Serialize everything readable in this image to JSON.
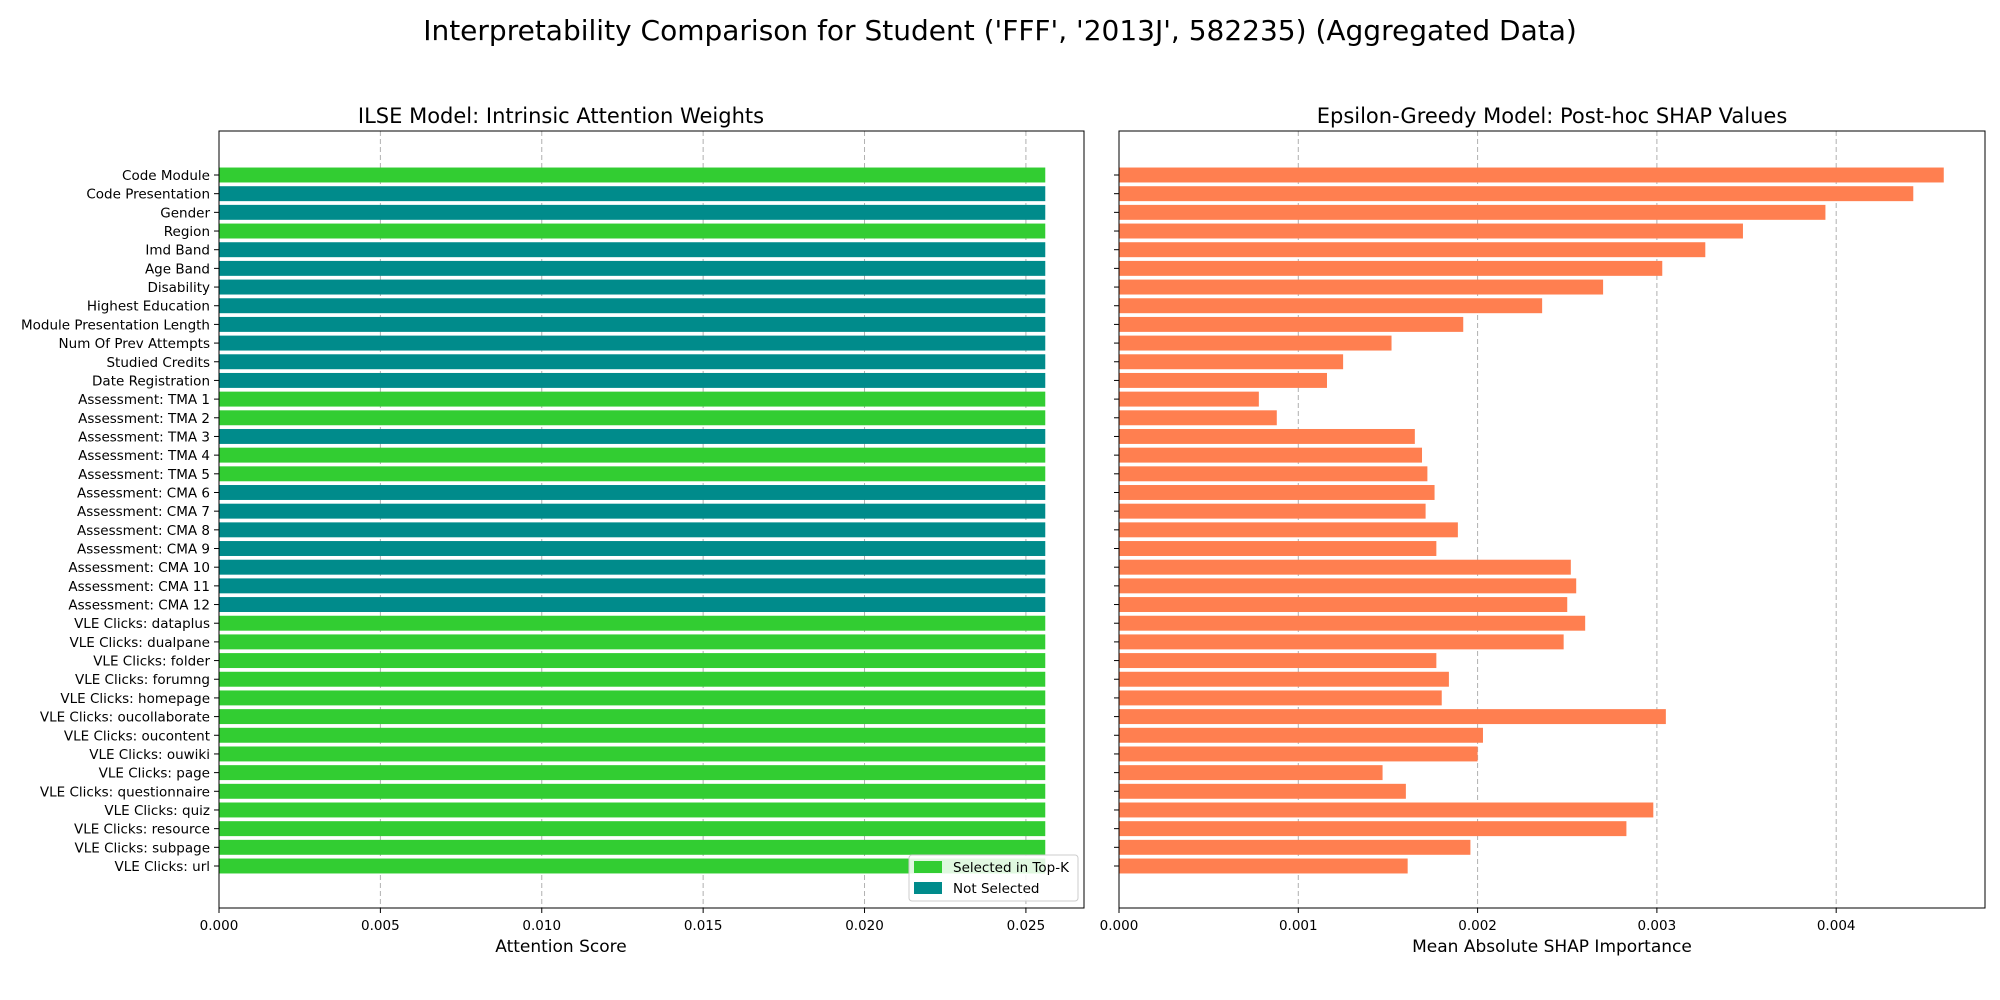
{
  "figure": {
    "suptitle": "Interpretability Comparison for Student ('FFF', '2013J', 582235) (Aggregated Data)"
  },
  "colors": {
    "selected": "#32cd32",
    "not_selected": "#008b8b",
    "shap": "#ff7f50",
    "grid": "#b0b0b0"
  },
  "chart_data": [
    {
      "type": "bar",
      "orientation": "horizontal",
      "title": "ILSE Model: Intrinsic Attention Weights",
      "xlabel": "Attention Score",
      "ylabel": "",
      "xlim": [
        0,
        0.0268
      ],
      "xticks": [
        "0.000",
        "0.005",
        "0.010",
        "0.015",
        "0.020",
        "0.025"
      ],
      "xtick_values": [
        0,
        0.005,
        0.01,
        0.015,
        0.02,
        0.025
      ],
      "grid": "vertical-dashed",
      "legend_placement": "lower-right",
      "legend": [
        {
          "label": "Selected in Top-K",
          "color": "#32cd32"
        },
        {
          "label": "Not Selected",
          "color": "#008b8b"
        }
      ],
      "categories": [
        "Code Module",
        "Code Presentation",
        "Gender",
        "Region",
        "Imd Band",
        "Age Band",
        "Disability",
        "Highest Education",
        "Module Presentation Length",
        "Num Of Prev Attempts",
        "Studied Credits",
        "Date Registration",
        "Assessment: TMA 1",
        "Assessment: TMA 2",
        "Assessment: TMA 3",
        "Assessment: TMA 4",
        "Assessment: TMA 5",
        "Assessment: CMA 6",
        "Assessment: CMA 7",
        "Assessment: CMA 8",
        "Assessment: CMA 9",
        "Assessment: CMA 10",
        "Assessment: CMA 11",
        "Assessment: CMA 12",
        "VLE Clicks: dataplus",
        "VLE Clicks: dualpane",
        "VLE Clicks: folder",
        "VLE Clicks: forumng",
        "VLE Clicks: homepage",
        "VLE Clicks: oucollaborate",
        "VLE Clicks: oucontent",
        "VLE Clicks: ouwiki",
        "VLE Clicks: page",
        "VLE Clicks: questionnaire",
        "VLE Clicks: quiz",
        "VLE Clicks: resource",
        "VLE Clicks: subpage",
        "VLE Clicks: url"
      ],
      "values": [
        0.0256,
        0.0256,
        0.0256,
        0.0256,
        0.0256,
        0.0256,
        0.0256,
        0.0256,
        0.0256,
        0.0256,
        0.0256,
        0.0256,
        0.0256,
        0.0256,
        0.0256,
        0.0256,
        0.0256,
        0.0256,
        0.0256,
        0.0256,
        0.0256,
        0.0256,
        0.0256,
        0.0256,
        0.0256,
        0.0256,
        0.0256,
        0.0256,
        0.0256,
        0.0256,
        0.0256,
        0.0256,
        0.0256,
        0.0256,
        0.0256,
        0.0256,
        0.0256,
        0.0256
      ],
      "selected": [
        true,
        false,
        false,
        true,
        false,
        false,
        false,
        false,
        false,
        false,
        false,
        false,
        true,
        true,
        false,
        true,
        true,
        false,
        false,
        false,
        false,
        false,
        false,
        false,
        true,
        true,
        true,
        true,
        true,
        true,
        true,
        true,
        true,
        true,
        true,
        true,
        true,
        true
      ]
    },
    {
      "type": "bar",
      "orientation": "horizontal",
      "title": "Epsilon-Greedy Model: Post-hoc SHAP Values",
      "xlabel": "Mean Absolute SHAP Importance",
      "ylabel": "",
      "xlim": [
        0,
        0.00483
      ],
      "xticks": [
        "0.000",
        "0.001",
        "0.002",
        "0.003",
        "0.004"
      ],
      "xtick_values": [
        0,
        0.001,
        0.002,
        0.003,
        0.004
      ],
      "grid": "vertical-dashed",
      "color": "#ff7f50",
      "categories": [
        "Code Module",
        "Code Presentation",
        "Gender",
        "Region",
        "Imd Band",
        "Age Band",
        "Disability",
        "Highest Education",
        "Module Presentation Length",
        "Num Of Prev Attempts",
        "Studied Credits",
        "Date Registration",
        "Assessment: TMA 1",
        "Assessment: TMA 2",
        "Assessment: TMA 3",
        "Assessment: TMA 4",
        "Assessment: TMA 5",
        "Assessment: CMA 6",
        "Assessment: CMA 7",
        "Assessment: CMA 8",
        "Assessment: CMA 9",
        "Assessment: CMA 10",
        "Assessment: CMA 11",
        "Assessment: CMA 12",
        "VLE Clicks: dataplus",
        "VLE Clicks: dualpane",
        "VLE Clicks: folder",
        "VLE Clicks: forumng",
        "VLE Clicks: homepage",
        "VLE Clicks: oucollaborate",
        "VLE Clicks: oucontent",
        "VLE Clicks: ouwiki",
        "VLE Clicks: page",
        "VLE Clicks: questionnaire",
        "VLE Clicks: quiz",
        "VLE Clicks: resource",
        "VLE Clicks: subpage",
        "VLE Clicks: url"
      ],
      "values": [
        0.0046,
        0.00443,
        0.00394,
        0.00348,
        0.00327,
        0.00303,
        0.0027,
        0.00236,
        0.00192,
        0.00152,
        0.00125,
        0.00116,
        0.00078,
        0.00088,
        0.00165,
        0.00169,
        0.00172,
        0.00176,
        0.00171,
        0.00189,
        0.00177,
        0.00252,
        0.00255,
        0.0025,
        0.0026,
        0.00248,
        0.00177,
        0.00184,
        0.0018,
        0.00305,
        0.00203,
        0.002,
        0.00147,
        0.0016,
        0.00298,
        0.00283,
        0.00196,
        0.00161
      ]
    }
  ]
}
